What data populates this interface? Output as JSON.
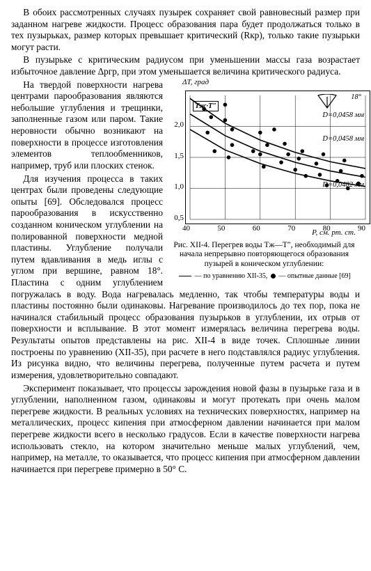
{
  "paragraphs": {
    "p1": "В обоих рассмотренных случаях пузырек сохраняет свой равновесный размер при заданном нагреве жидкости. Процесс образования пара будет продолжаться только в тех пузырьках, размер которых превышает критический (Rкр), только такие пузырьки могут расти.",
    "p2": "В пузырьке с критическим радиусом при уменьшении массы газа возрастает избыточное давление Δpгр, при этом уменьшается величина критического радиуса.",
    "p3a": "На твердой поверхности нагрева центрами парообразования являются небольшие углубления и трещинки, заполненные газом или паром. Такие неровности обычно возникают на поверхности в процессе изготовления элементов теплообменников, например, труб или плоских стенок.",
    "p3b": "Для изучения процесса в таких центрах были проведены следующие опыты [69]. Обследовался процесс парообразования в искусственно созданном коническом углублении на полированной поверхности медной пластины. Углубление получали путем вдавливания в медь иглы с углом при вершине, равном 18°. Пластина с одним углублением погружалась в воду. Вода нагревалась медленно, так чтобы температуры воды и пластины постоянно были одинаковы. Нагревание производилось до тех пор, пока не начинался стабильный процесс образования пузырьков в углублении, их отрыв от поверхности и всплывание. В этот момент измерялась величина перегрева воды. Результаты опытов представлены на рис. XII-4 в виде точек. Сплошные линии построены по уравнению (XII-35), при расчете в него подставлялся радиус углубления. Из рисунка видно, что величины перегрева, полученные путем расчета и путем измерения, удовлетворительно совпадают.",
    "p4": "Эксперимент показывает, что процессы зарождения новой фазы в пузырьке газа и в углублении, наполненном газом, одинаковы и могут протекать при очень малом перегреве жидкости. В реальных условиях на технических поверхностях, например на металлических, процесс кипения при атмосферном давлении начинается при малом перегреве жидкости всего в несколько градусов. Если в качестве поверхности нагрева использовать стекло, на котором значительно меньше малых углублений, чем, например, на металле, то оказывается, что процесс кипения при атмосферном давлении начинается при перегреве примерно в 50° С."
  },
  "figure": {
    "y_axis_title": "ΔT, град",
    "x_axis_title": "P, см. рт. ст.",
    "top_left_inset": "Tж·T″",
    "angle_label": "18°",
    "series_labels": {
      "s1": "D=0,0458 мм",
      "s2": "D=0,0458 мм",
      "s3": "D=0,0482 мм"
    },
    "x_min": 40,
    "x_max": 90,
    "x_ticks": [
      40,
      50,
      60,
      70,
      80,
      90
    ],
    "y_min": 0.5,
    "y_max": 2.5,
    "y_ticks": [
      0.5,
      1.0,
      1.5,
      2.0
    ],
    "grid_color": "#000000",
    "curve_color": "#000000",
    "point_color": "#000000",
    "point_radius": 2.8,
    "curves": [
      [
        [
          40,
          2.45
        ],
        [
          50,
          2.05
        ],
        [
          60,
          1.78
        ],
        [
          70,
          1.58
        ],
        [
          80,
          1.43
        ],
        [
          90,
          1.32
        ]
      ],
      [
        [
          40,
          2.2
        ],
        [
          50,
          1.85
        ],
        [
          60,
          1.6
        ],
        [
          70,
          1.42
        ],
        [
          80,
          1.28
        ],
        [
          90,
          1.18
        ]
      ],
      [
        [
          40,
          1.95
        ],
        [
          50,
          1.62
        ],
        [
          60,
          1.4
        ],
        [
          70,
          1.24
        ],
        [
          80,
          1.12
        ],
        [
          90,
          1.03
        ]
      ]
    ],
    "points": [
      [
        44,
        2.28
      ],
      [
        46,
        2.15
      ],
      [
        45,
        1.9
      ],
      [
        47,
        1.6
      ],
      [
        50,
        2.35
      ],
      [
        52,
        1.95
      ],
      [
        52,
        1.7
      ],
      [
        51,
        1.5
      ],
      [
        50,
        2.1
      ],
      [
        58,
        1.6
      ],
      [
        60,
        1.55
      ],
      [
        60,
        1.9
      ],
      [
        61,
        1.35
      ],
      [
        62,
        1.7
      ],
      [
        66,
        1.42
      ],
      [
        68,
        1.55
      ],
      [
        67,
        1.72
      ],
      [
        64,
        1.95
      ],
      [
        70,
        1.3
      ],
      [
        72,
        1.6
      ],
      [
        71,
        1.48
      ],
      [
        73,
        1.2
      ],
      [
        76,
        1.4
      ],
      [
        78,
        1.55
      ],
      [
        77,
        1.22
      ],
      [
        79,
        1.05
      ],
      [
        82,
        1.12
      ],
      [
        83,
        1.28
      ],
      [
        84,
        1.45
      ],
      [
        85,
        1.0
      ],
      [
        88,
        1.08
      ],
      [
        89,
        1.2
      ]
    ],
    "caption_main": "Рис. XII-4. Перегрев воды Tж—T″, необходимый для начала непрерывно повторяющегося образования пузырей в коническом углублении:",
    "legend_line": "— по уравнению XII-35,",
    "legend_point": " — опытные данные [69]"
  }
}
